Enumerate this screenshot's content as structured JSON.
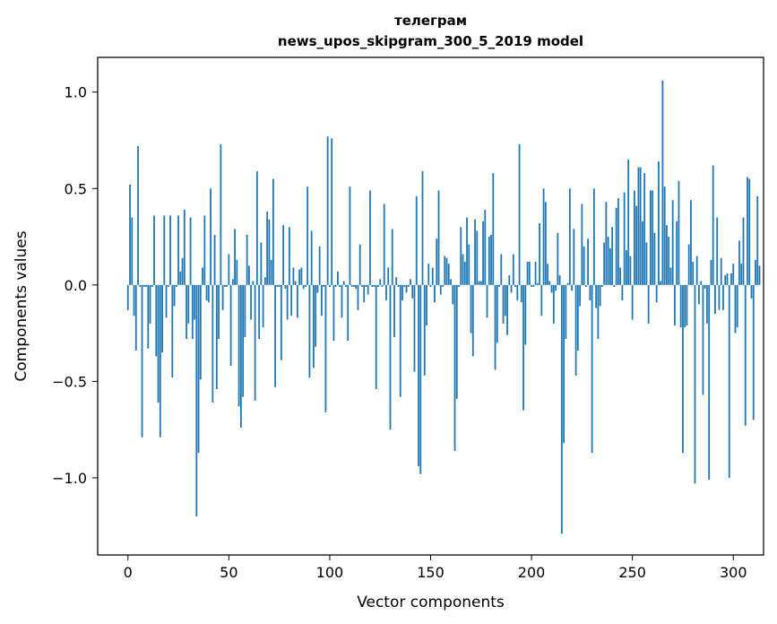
{
  "chart_data": {
    "type": "bar",
    "title": "телеграм\nnews_upos_skipgram_300_5_2019 model",
    "title_lines": [
      "телеграм",
      "news_upos_skipgram_300_5_2019 model"
    ],
    "xlabel": "Vector components",
    "ylabel": "Components values",
    "xlim": [
      -15,
      315
    ],
    "ylim": [
      -1.4,
      1.18
    ],
    "x_ticks": [
      0,
      50,
      100,
      150,
      200,
      250,
      300
    ],
    "x_tick_labels": [
      "0",
      "50",
      "100",
      "150",
      "200",
      "250",
      "300"
    ],
    "y_ticks": [
      -1.0,
      -0.5,
      0.0,
      0.5,
      1.0
    ],
    "y_tick_labels": [
      "−1.0",
      "−0.5",
      "0.0",
      "0.5",
      "1.0"
    ],
    "grid": false,
    "bar_color": "#1f77b4",
    "values": [
      -0.13,
      0.52,
      0.35,
      -0.16,
      -0.34,
      0.72,
      -0.01,
      -0.79,
      -0.01,
      -0.01,
      -0.33,
      -0.2,
      -0.01,
      0.36,
      -0.37,
      -0.61,
      -0.79,
      -0.35,
      0.36,
      -0.17,
      -0.01,
      0.36,
      -0.48,
      -0.11,
      -0.01,
      0.36,
      0.07,
      0.14,
      0.39,
      -0.28,
      -0.2,
      0.35,
      -0.28,
      -0.18,
      -1.2,
      -0.87,
      -0.49,
      0.09,
      0.36,
      -0.08,
      -0.09,
      0.5,
      -0.61,
      0.26,
      -0.54,
      -0.28,
      0.73,
      -0.13,
      -0.01,
      -0.01,
      0.16,
      -0.42,
      0.03,
      0.29,
      0.13,
      -0.63,
      -0.74,
      -0.58,
      -0.27,
      0.26,
      0.1,
      -0.18,
      0.02,
      -0.6,
      0.59,
      -0.28,
      0.22,
      -0.22,
      0.04,
      0.38,
      0.34,
      0.13,
      0.55,
      -0.53,
      -0.01,
      -0.01,
      -0.39,
      0.31,
      -0.02,
      -0.18,
      0.3,
      -0.16,
      0.09,
      0.02,
      -0.17,
      0.08,
      0.09,
      -0.02,
      -0.01,
      0.51,
      -0.48,
      0.28,
      -0.43,
      -0.32,
      -0.04,
      0.2,
      -0.16,
      -0.01,
      -0.66,
      0.77,
      -0.01,
      0.76,
      -0.29,
      -0.01,
      0.07,
      -0.01,
      -0.17,
      0.02,
      -0.01,
      -0.29,
      0.51,
      -0.01,
      -0.01,
      -0.02,
      -0.13,
      0.21,
      -0.01,
      -0.09,
      -0.01,
      -0.05,
      0.49,
      -0.01,
      -0.01,
      -0.54,
      -0.01,
      0.03,
      -0.01,
      0.42,
      -0.08,
      0.09,
      -0.75,
      0.29,
      -0.27,
      0.04,
      -0.01,
      -0.58,
      -0.08,
      -0.01,
      -0.04,
      -0.01,
      0.03,
      -0.07,
      -0.45,
      0.46,
      -0.94,
      -0.98,
      0.59,
      -0.47,
      -0.21,
      0.11,
      -0.01,
      0.09,
      -0.09,
      0.24,
      0.49,
      -0.05,
      -0.01,
      0.15,
      0.14,
      0.11,
      0.03,
      -0.1,
      -0.86,
      -0.59,
      -0.01,
      0.3,
      0.16,
      0.12,
      0.35,
      0.21,
      -0.25,
      -0.37,
      0.34,
      0.28,
      0.02,
      0.02,
      0.33,
      0.39,
      -0.17,
      0.25,
      0.26,
      0.58,
      -0.44,
      -0.3,
      -0.01,
      0.16,
      -0.2,
      -0.16,
      -0.26,
      0.05,
      -0.04,
      0.16,
      -0.01,
      -0.08,
      0.73,
      -0.09,
      -0.65,
      -0.31,
      0.12,
      0.12,
      -0.01,
      -0.01,
      0.12,
      0.01,
      0.32,
      -0.16,
      0.5,
      0.43,
      0.11,
      0.02,
      -0.04,
      -0.2,
      -0.03,
      0.27,
      0.05,
      -1.29,
      -0.82,
      -0.28,
      0.01,
      0.5,
      -0.03,
      0.29,
      -0.47,
      -0.34,
      -0.11,
      0.42,
      0.2,
      -0.01,
      0.24,
      -0.08,
      -0.87,
      0.5,
      -0.12,
      -0.28,
      -0.11,
      -0.01,
      0.22,
      0.43,
      0.25,
      0.19,
      0.3,
      -0.01,
      0.4,
      0.45,
      0.09,
      -0.08,
      0.48,
      0.18,
      0.65,
      0.15,
      -0.18,
      0.49,
      0.41,
      0.61,
      0.61,
      0.33,
      0.58,
      0.22,
      -0.2,
      0.49,
      0.49,
      0.27,
      -0.09,
      0.64,
      0.02,
      1.06,
      0.51,
      0.31,
      0.25,
      0.09,
      0.44,
      -0.21,
      0.33,
      0.54,
      -0.22,
      -0.87,
      -0.22,
      -0.21,
      0.21,
      0.44,
      0.12,
      -1.03,
      0.15,
      -0.1,
      0.02,
      -0.57,
      -0.02,
      -0.2,
      -1.01,
      0.13,
      0.62,
      -0.15,
      0.35,
      -0.13,
      0.14,
      -0.13,
      0.05,
      0.06,
      -1.0,
      0.06,
      0.11,
      -0.25,
      -0.22,
      0.23,
      0.11,
      0.35,
      -0.73,
      0.56,
      0.55,
      -0.07,
      -0.7,
      0.13,
      0.46,
      0.1
    ]
  }
}
